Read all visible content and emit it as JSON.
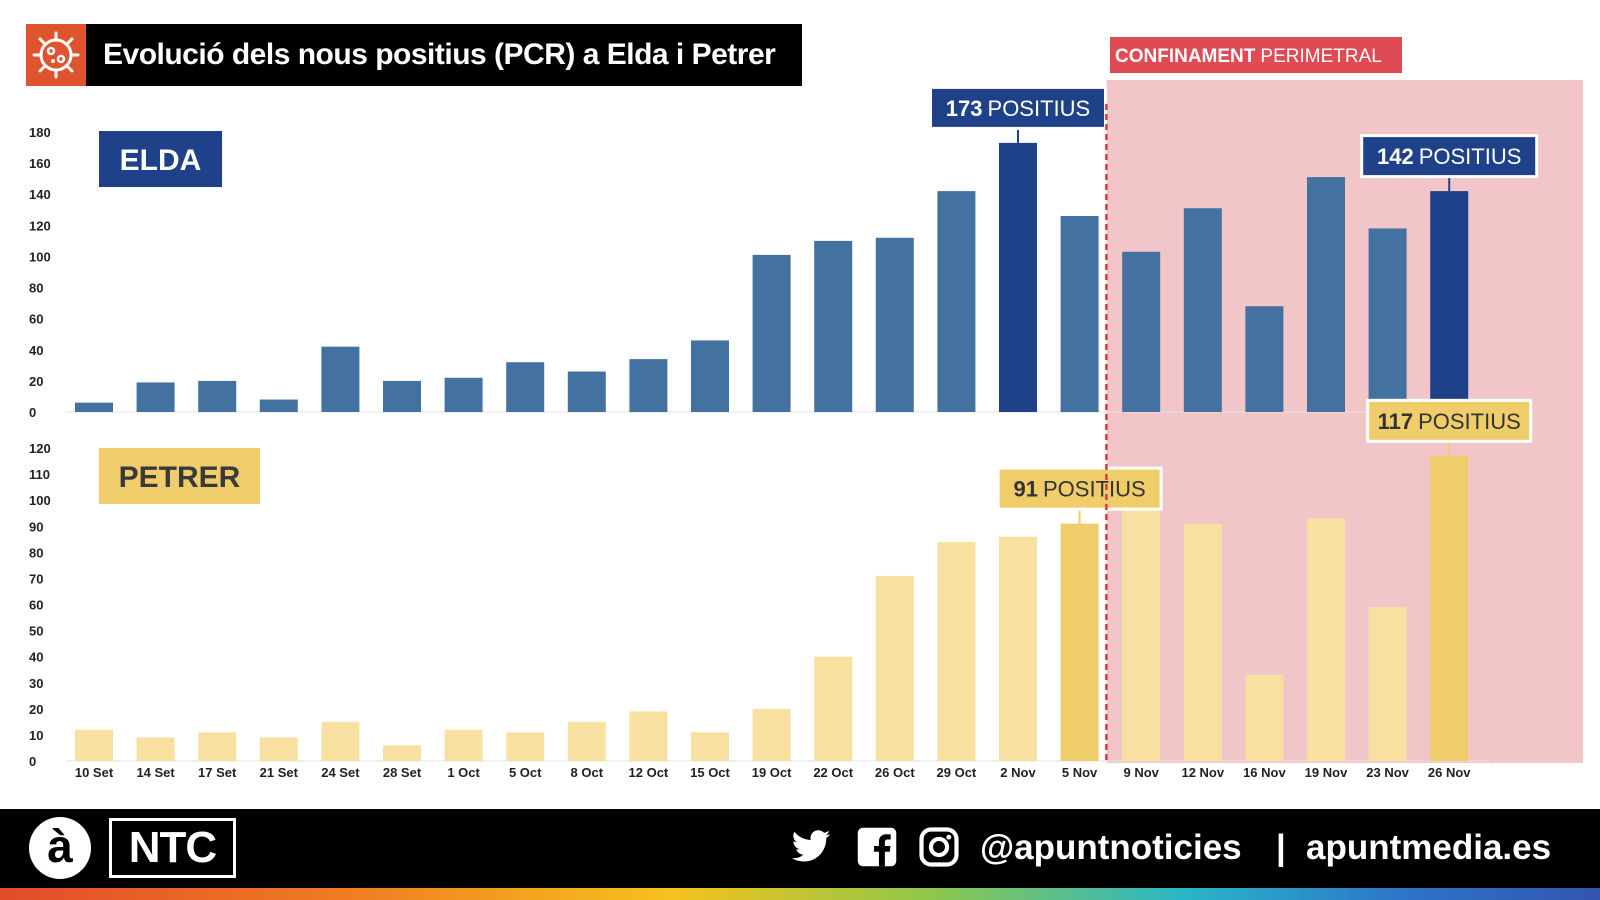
{
  "title": "Evolució dels nous positius (PCR) a Elda i Petrer",
  "lockdown_label_bold": "CONFINAMENT",
  "lockdown_label_light": "PERIMETRAL",
  "footer": {
    "logo_a": "à",
    "logo_ntc": "NTC",
    "handle": "@apuntnoticies",
    "separator": "|",
    "site": "apuntmedia.es"
  },
  "colors": {
    "elda": "#4372a0",
    "elda_highlight": "#1f418a",
    "petrer": "#f8e1a0",
    "petrer_highlight": "#f0cd6b",
    "lockdown_bg": "#f2c6c9",
    "lockdown_line": "#d83b3b",
    "lockdown_label_bg": "#e04a55"
  },
  "chart_data": {
    "type": "bar",
    "categories": [
      "10 Set",
      "14 Set",
      "17 Set",
      "21 Set",
      "24 Set",
      "28 Set",
      "1 Oct",
      "5 Oct",
      "8 Oct",
      "12 Oct",
      "15 Oct",
      "19 Oct",
      "22 Oct",
      "26 Oct",
      "29 Oct",
      "2 Nov",
      "5 Nov",
      "9 Nov",
      "12 Nov",
      "16 Nov",
      "19 Nov",
      "23 Nov",
      "26 Nov"
    ],
    "lockdown_start_after": "5 Nov",
    "series": [
      {
        "name": "ELDA",
        "ylim": [
          0,
          180
        ],
        "yticks": [
          0,
          20,
          40,
          60,
          80,
          100,
          120,
          140,
          160,
          180
        ],
        "values": [
          6,
          19,
          20,
          8,
          42,
          20,
          22,
          32,
          26,
          34,
          46,
          101,
          110,
          112,
          142,
          173,
          126,
          103,
          131,
          68,
          151,
          118,
          142
        ],
        "highlight_indices": [
          15,
          22
        ],
        "annotations": [
          {
            "index": 15,
            "number": "173",
            "text": "POSITIUS"
          },
          {
            "index": 22,
            "number": "142",
            "text": "POSITIUS"
          }
        ]
      },
      {
        "name": "PETRER",
        "ylim": [
          0,
          120
        ],
        "yticks": [
          0,
          10,
          20,
          30,
          40,
          50,
          60,
          70,
          80,
          90,
          100,
          110,
          120
        ],
        "values": [
          12,
          9,
          11,
          9,
          15,
          6,
          12,
          11,
          15,
          19,
          11,
          20,
          40,
          71,
          84,
          86,
          91,
          100,
          91,
          33,
          93,
          59,
          117
        ],
        "highlight_indices": [
          16,
          22
        ],
        "annotations": [
          {
            "index": 16,
            "number": "91",
            "text": "POSITIUS"
          },
          {
            "index": 22,
            "number": "117",
            "text": "POSITIUS"
          }
        ]
      }
    ]
  }
}
